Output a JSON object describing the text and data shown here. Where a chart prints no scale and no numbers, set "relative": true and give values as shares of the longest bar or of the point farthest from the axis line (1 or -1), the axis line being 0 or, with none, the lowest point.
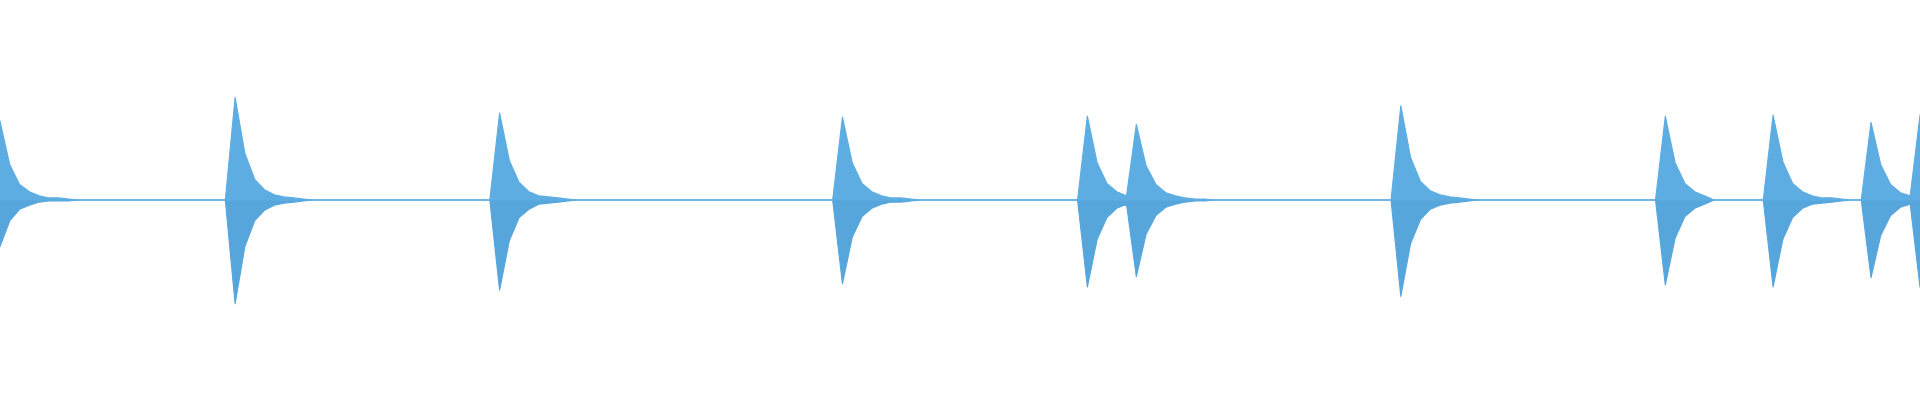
{
  "chart_data": {
    "type": "area",
    "relative": true,
    "ref_lines": [
      {
        "axis": "y",
        "value": 0,
        "color": "#5dade2"
      }
    ],
    "categories": [
      null,
      null,
      null,
      null,
      null,
      null,
      null,
      null,
      null,
      null,
      null,
      null,
      null,
      null,
      null,
      null,
      null,
      null,
      null,
      null,
      null,
      null,
      null,
      null,
      null,
      null,
      null,
      null,
      null,
      null,
      null,
      null,
      null,
      null,
      null,
      null,
      null,
      null,
      null,
      null,
      null,
      null,
      null,
      null,
      null,
      null,
      null,
      null,
      null,
      null,
      null,
      null,
      null,
      null,
      null,
      null,
      null,
      null,
      null,
      null,
      null,
      null,
      null,
      null,
      null,
      null,
      null,
      null,
      null,
      null,
      null,
      null,
      null,
      null,
      null,
      null,
      null,
      null,
      null,
      null,
      null,
      null,
      null,
      null,
      null,
      null,
      null,
      null,
      null,
      null,
      null,
      null,
      null,
      null,
      null,
      null,
      null,
      null,
      null,
      null,
      null,
      null,
      null,
      null,
      null,
      null,
      null,
      null,
      null,
      null,
      null,
      null,
      null,
      null,
      null,
      null,
      null,
      null,
      null,
      null,
      null,
      null,
      null,
      null,
      null,
      null,
      null,
      null,
      null,
      null,
      null,
      null,
      null,
      null,
      null,
      null,
      null,
      null,
      null,
      null,
      null,
      null,
      null,
      null,
      null,
      null,
      null,
      null,
      null,
      null,
      null,
      null,
      null,
      null,
      null,
      null,
      null,
      null,
      null,
      null,
      null,
      null,
      null,
      null,
      null,
      null,
      null,
      null,
      null,
      null,
      null,
      null,
      null,
      null,
      null,
      null,
      null,
      null,
      null,
      null,
      null,
      null,
      null,
      null,
      null,
      null,
      null,
      null,
      null,
      null,
      null,
      null,
      null,
      null,
      null,
      null,
      null
    ],
    "series": [
      {
        "color": "#5dade2",
        "values": [
          0.76,
          0.34,
          0.15,
          0.08,
          0.04,
          0.02,
          0.02,
          0.01,
          null,
          null,
          null,
          null,
          null,
          null,
          null,
          null,
          null,
          null,
          null,
          null,
          null,
          null,
          null,
          null,
          0.99,
          0.45,
          0.2,
          0.1,
          0.05,
          0.03,
          0.02,
          0.01,
          null,
          null,
          null,
          null,
          null,
          null,
          null,
          null,
          null,
          null,
          null,
          null,
          null,
          null,
          null,
          null,
          null,
          null,
          null,
          0.84,
          0.38,
          0.17,
          0.08,
          0.04,
          0.03,
          0.02,
          0.01,
          null,
          null,
          null,
          null,
          null,
          null,
          null,
          null,
          null,
          null,
          null,
          null,
          null,
          null,
          null,
          null,
          null,
          null,
          null,
          null,
          null,
          null,
          null,
          null,
          null,
          null,
          null,
          0.8,
          0.36,
          0.16,
          0.08,
          0.04,
          0.02,
          0.02,
          0.01,
          null,
          null,
          null,
          null,
          null,
          null,
          null,
          null,
          null,
          null,
          null,
          null,
          null,
          null,
          null,
          null,
          null,
          0.81,
          0.36,
          0.16,
          0.08,
          0.04,
          0.73,
          0.33,
          0.15,
          0.07,
          0.04,
          0.02,
          0.01,
          0.01,
          null,
          null,
          null,
          null,
          null,
          null,
          null,
          null,
          null,
          null,
          null,
          null,
          null,
          null,
          null,
          null,
          null,
          null,
          null,
          0.91,
          0.41,
          0.18,
          0.09,
          0.05,
          0.03,
          0.02,
          0.01,
          null,
          null,
          null,
          null,
          null,
          null,
          null,
          null,
          null,
          null,
          null,
          null,
          null,
          null,
          null,
          null,
          null,
          null,
          null,
          0.81,
          0.36,
          0.16,
          0.08,
          0.04,
          null,
          null,
          null,
          null,
          null,
          null,
          0.82,
          0.37,
          0.16,
          0.08,
          0.04,
          0.02,
          0.02,
          0.01,
          null,
          null,
          0.75,
          0.34,
          0.15,
          0.07,
          0.04,
          0.82
        ]
      },
      {
        "color": "#56a6dc",
        "values": [
          -0.45,
          -0.2,
          -0.09,
          -0.05,
          -0.02,
          -0.01,
          -0.01,
          -0.01,
          null,
          null,
          null,
          null,
          null,
          null,
          null,
          null,
          null,
          null,
          null,
          null,
          null,
          null,
          null,
          null,
          -1,
          -0.45,
          -0.2,
          -0.1,
          -0.05,
          -0.03,
          -0.02,
          -0.01,
          null,
          null,
          null,
          null,
          null,
          null,
          null,
          null,
          null,
          null,
          null,
          null,
          null,
          null,
          null,
          null,
          null,
          null,
          null,
          -0.87,
          -0.39,
          -0.17,
          -0.09,
          -0.04,
          -0.03,
          -0.02,
          -0.01,
          null,
          null,
          null,
          null,
          null,
          null,
          null,
          null,
          null,
          null,
          null,
          null,
          null,
          null,
          null,
          null,
          null,
          null,
          null,
          null,
          null,
          null,
          null,
          null,
          null,
          null,
          null,
          -0.81,
          -0.36,
          -0.16,
          -0.08,
          -0.04,
          -0.02,
          -0.02,
          -0.01,
          null,
          null,
          null,
          null,
          null,
          null,
          null,
          null,
          null,
          null,
          null,
          null,
          null,
          null,
          null,
          null,
          null,
          -0.84,
          -0.38,
          -0.17,
          -0.08,
          -0.04,
          -0.74,
          -0.33,
          -0.15,
          -0.07,
          -0.04,
          -0.02,
          -0.01,
          -0.01,
          null,
          null,
          null,
          null,
          null,
          null,
          null,
          null,
          null,
          null,
          null,
          null,
          null,
          null,
          null,
          null,
          null,
          null,
          null,
          -0.93,
          -0.42,
          -0.19,
          -0.09,
          -0.05,
          -0.03,
          -0.02,
          -0.01,
          null,
          null,
          null,
          null,
          null,
          null,
          null,
          null,
          null,
          null,
          null,
          null,
          null,
          null,
          null,
          null,
          null,
          null,
          null,
          -0.82,
          -0.37,
          -0.16,
          -0.08,
          -0.04,
          null,
          null,
          null,
          null,
          null,
          null,
          -0.84,
          -0.38,
          -0.17,
          -0.08,
          -0.04,
          -0.03,
          -0.02,
          -0.01,
          null,
          null,
          -0.75,
          -0.34,
          -0.15,
          -0.07,
          -0.04,
          -0.84
        ]
      }
    ]
  }
}
